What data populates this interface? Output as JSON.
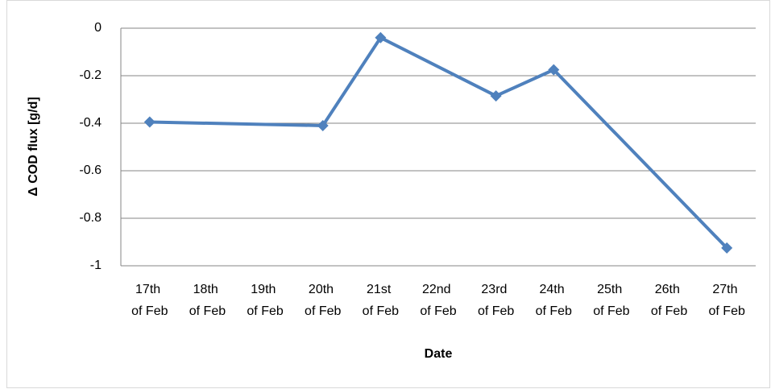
{
  "chart_data": {
    "type": "line",
    "x_label": "Date",
    "y_label": "Δ COD flux [g/d]",
    "categories": [
      "17th of Feb",
      "18th of Feb",
      "19th of Feb",
      "20th of Feb",
      "21st of Feb",
      "22nd of Feb",
      "23rd of Feb",
      "24th of Feb",
      "25th of Feb",
      "26th of Feb",
      "27th of Feb"
    ],
    "values": [
      -0.395,
      null,
      null,
      -0.41,
      -0.04,
      null,
      -0.285,
      -0.175,
      null,
      null,
      -0.925
    ],
    "color": "#4f81bd",
    "span_gaps": true,
    "ylim": [
      -1,
      0
    ],
    "yticks": [
      -1,
      -0.8,
      -0.6,
      -0.4,
      -0.2,
      0
    ],
    "grid": true
  }
}
